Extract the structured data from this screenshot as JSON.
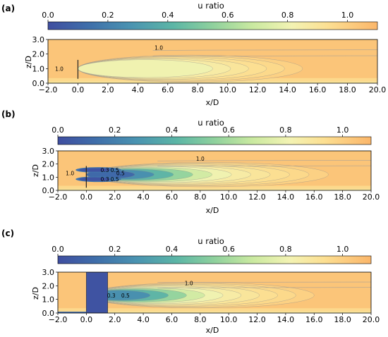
{
  "chart_data": [
    {
      "type": "heatmap",
      "panel_label": "(a)",
      "colorbar": {
        "label": "u ratio",
        "ticks": [
          0.0,
          0.2,
          0.4,
          0.6,
          0.8,
          1.0
        ],
        "tick_labels": [
          "0.0",
          "0.2",
          "0.4",
          "0.6",
          "0.8",
          "1.0"
        ],
        "range": [
          0.0,
          1.1
        ]
      },
      "xlabel": "x/D",
      "ylabel": "z/D",
      "xlim": [
        -2.0,
        20.0
      ],
      "ylim": [
        0.0,
        3.0
      ],
      "x_ticks": [
        "-2.0",
        "0.0",
        "2.0",
        "4.0",
        "6.0",
        "8.0",
        "10.0",
        "12.0",
        "14.0",
        "16.0",
        "18.0",
        "20.0"
      ],
      "y_ticks": [
        "0.0",
        "1.0",
        "2.0",
        "3.0"
      ],
      "contour_labels": [
        {
          "text": "1.0",
          "x": -1.25,
          "z": 1.0
        },
        {
          "text": "1.0",
          "x": 5.4,
          "z": 2.45
        }
      ],
      "obstacle": {
        "kind": "thin_plate",
        "x": [
          0.0,
          0.05
        ],
        "z": [
          0.3,
          1.6
        ]
      },
      "wake": {
        "center_x": 2.3,
        "center_z": 1.0,
        "min_u": 0.8,
        "length_x": 15.0
      }
    },
    {
      "type": "heatmap",
      "panel_label": "(b)",
      "colorbar": {
        "label": "u ratio",
        "ticks": [
          0.0,
          0.2,
          0.4,
          0.6,
          0.8,
          1.0
        ],
        "tick_labels": [
          "0.0",
          "0.2",
          "0.4",
          "0.6",
          "0.8",
          "1.0"
        ],
        "range": [
          0.0,
          1.1
        ]
      },
      "xlabel": "x/D",
      "ylabel": "z/D",
      "xlim": [
        -2.0,
        20.0
      ],
      "ylim": [
        0.0,
        3.0
      ],
      "x_ticks": [
        "-2.0",
        "0.0",
        "2.0",
        "4.0",
        "6.0",
        "8.0",
        "10.0",
        "12.0",
        "14.0",
        "16.0",
        "18.0",
        "20.0"
      ],
      "y_ticks": [
        "0.0",
        "1.0",
        "2.0",
        "3.0"
      ],
      "contour_labels": [
        {
          "text": "1.0",
          "x": -1.15,
          "z": 1.3
        },
        {
          "text": "0.3",
          "x": 1.3,
          "z": 1.55
        },
        {
          "text": "0.5",
          "x": 2.0,
          "z": 1.55
        },
        {
          "text": "0.5",
          "x": 2.4,
          "z": 1.3
        },
        {
          "text": "0.3",
          "x": 1.3,
          "z": 0.85
        },
        {
          "text": "0.5",
          "x": 2.0,
          "z": 0.85
        },
        {
          "text": "1.0",
          "x": 8.0,
          "z": 2.4
        }
      ],
      "obstacle": {
        "kind": "rotor",
        "x": [
          0.0,
          0.05
        ],
        "z": [
          0.2,
          1.85
        ]
      },
      "wake": {
        "center_x": 1.0,
        "center_z": 1.2,
        "min_u": 0.0,
        "length_x": 17.0
      }
    },
    {
      "type": "heatmap",
      "panel_label": "(c)",
      "colorbar": {
        "label": "u ratio",
        "ticks": [
          0.0,
          0.2,
          0.4,
          0.6,
          0.8,
          1.0
        ],
        "tick_labels": [
          "0.0",
          "0.2",
          "0.4",
          "0.6",
          "0.8",
          "1.0"
        ],
        "range": [
          0.0,
          1.1
        ]
      },
      "xlabel": "x/D",
      "ylabel": "z/D",
      "xlim": [
        -2.0,
        20.0
      ],
      "ylim": [
        0.0,
        3.0
      ],
      "x_ticks": [
        "-2.0",
        "0.0",
        "2.0",
        "4.0",
        "6.0",
        "8.0",
        "10.0",
        "12.0",
        "14.0",
        "16.0",
        "18.0",
        "20.0"
      ],
      "y_ticks": [
        "0.0",
        "1.0",
        "2.0",
        "3.0"
      ],
      "contour_labels": [
        {
          "text": "0.3",
          "x": 1.75,
          "z": 1.3
        },
        {
          "text": "0.5",
          "x": 2.75,
          "z": 1.3
        },
        {
          "text": "1.0",
          "x": 7.2,
          "z": 2.2
        }
      ],
      "obstacle": {
        "kind": "solid_block",
        "x": [
          0.0,
          1.5
        ],
        "z": [
          0.0,
          3.0
        ]
      },
      "wake": {
        "center_x": 1.8,
        "center_z": 1.3,
        "min_u": 0.15,
        "length_x": 16.0
      }
    }
  ]
}
